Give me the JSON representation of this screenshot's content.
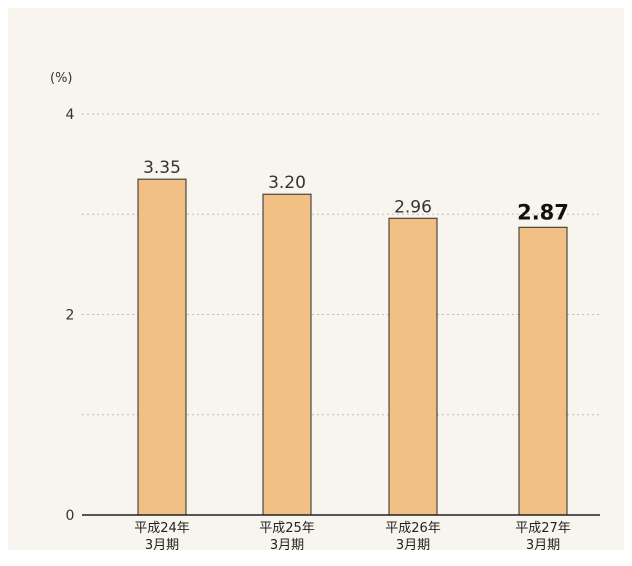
{
  "chart_data": {
    "type": "bar",
    "unit": "(%)",
    "categories": [
      [
        "平成24年",
        "3月期"
      ],
      [
        "平成25年",
        "3月期"
      ],
      [
        "平成26年",
        "3月期"
      ],
      [
        "平成27年",
        "3月期"
      ]
    ],
    "values": [
      3.35,
      3.2,
      2.96,
      2.87
    ],
    "value_labels": [
      "3.35",
      "3.20",
      "2.96",
      "2.87"
    ],
    "highlight_index": 3,
    "ylim": [
      0,
      4
    ],
    "yticks": [
      0,
      2,
      4
    ],
    "gridlines": [
      1,
      2,
      3,
      4
    ],
    "grid": "dotted",
    "colors": {
      "bar_fill": "#f2bf85",
      "bar_stroke": "#2a2a2a",
      "grid": "#bdbdbd",
      "axis": "#222222",
      "background": "#f8f5ee"
    }
  }
}
